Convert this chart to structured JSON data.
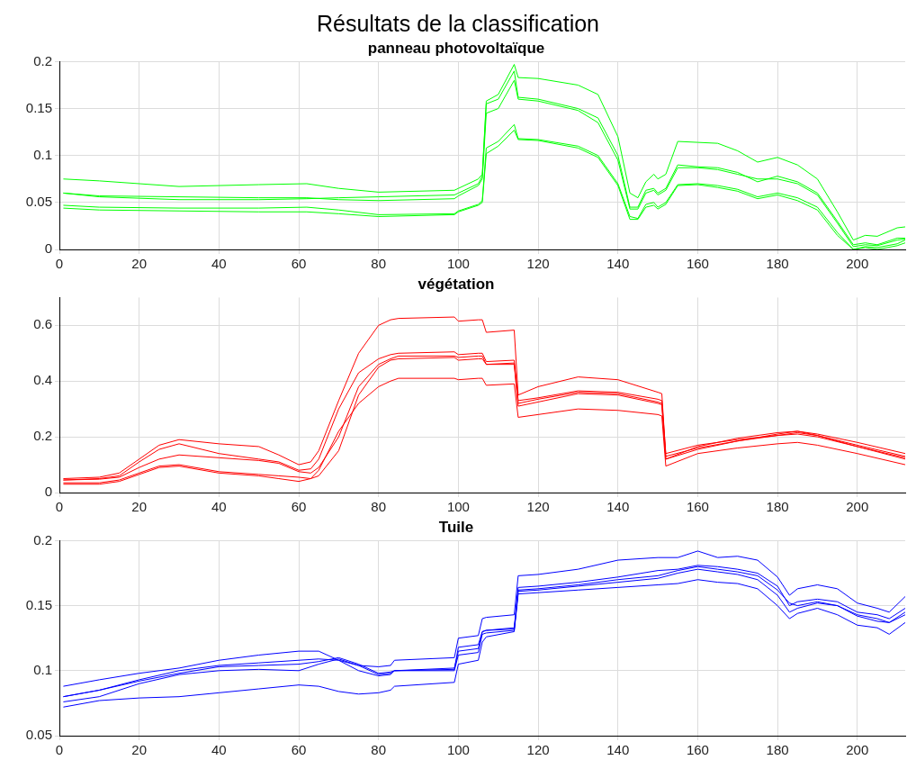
{
  "chart_data": [
    {
      "type": "line",
      "title": "Résultats de la classification",
      "subtitle": "panneau photovoltaïque",
      "x": [
        1,
        10,
        30,
        50,
        62,
        70,
        80,
        99,
        100,
        105,
        106,
        107,
        110,
        114,
        115,
        120,
        130,
        135,
        140,
        143,
        145,
        147,
        149,
        150,
        152,
        155,
        160,
        165,
        170,
        175,
        180,
        185,
        190,
        195,
        199,
        202,
        205,
        210,
        212
      ],
      "xlim": [
        0,
        212
      ],
      "xticks": [
        0,
        20,
        40,
        60,
        80,
        100,
        120,
        140,
        160,
        180,
        200
      ],
      "ylim": [
        0,
        0.2
      ],
      "yticks": [
        0,
        0.05,
        0.1,
        0.15,
        0.2
      ],
      "grid": true,
      "legend": false,
      "marker": "none",
      "line_style": "solid",
      "series": [
        {
          "color": "#00ff00",
          "values": [
            0.075,
            0.073,
            0.067,
            0.069,
            0.07,
            0.065,
            0.061,
            0.063,
            0.065,
            0.075,
            0.08,
            0.158,
            0.165,
            0.197,
            0.183,
            0.182,
            0.175,
            0.165,
            0.12,
            0.06,
            0.055,
            0.072,
            0.08,
            0.075,
            0.08,
            0.115,
            0.114,
            0.113,
            0.105,
            0.093,
            0.098,
            0.09,
            0.075,
            0.04,
            0.01,
            0.015,
            0.014,
            0.023,
            0.024
          ]
        },
        {
          "color": "#00ff00",
          "values": [
            0.06,
            0.056,
            0.053,
            0.053,
            0.054,
            0.055,
            0.056,
            0.058,
            0.06,
            0.07,
            0.078,
            0.155,
            0.16,
            0.19,
            0.162,
            0.16,
            0.15,
            0.14,
            0.1,
            0.045,
            0.045,
            0.063,
            0.065,
            0.06,
            0.065,
            0.09,
            0.088,
            0.087,
            0.082,
            0.072,
            0.078,
            0.072,
            0.06,
            0.03,
            0.005,
            0.007,
            0.005,
            0.012,
            0.012
          ]
        },
        {
          "color": "#00ff00",
          "values": [
            0.06,
            0.057,
            0.056,
            0.055,
            0.055,
            0.053,
            0.052,
            0.054,
            0.057,
            0.068,
            0.075,
            0.145,
            0.15,
            0.18,
            0.16,
            0.158,
            0.148,
            0.135,
            0.095,
            0.043,
            0.043,
            0.06,
            0.063,
            0.058,
            0.063,
            0.087,
            0.087,
            0.085,
            0.08,
            0.075,
            0.075,
            0.07,
            0.058,
            0.028,
            0.003,
            0.005,
            0.004,
            0.01,
            0.011
          ]
        },
        {
          "color": "#00ff00",
          "values": [
            0.047,
            0.045,
            0.044,
            0.044,
            0.045,
            0.042,
            0.037,
            0.038,
            0.041,
            0.048,
            0.052,
            0.108,
            0.115,
            0.133,
            0.118,
            0.117,
            0.11,
            0.1,
            0.07,
            0.035,
            0.033,
            0.048,
            0.05,
            0.045,
            0.05,
            0.069,
            0.07,
            0.068,
            0.064,
            0.056,
            0.06,
            0.055,
            0.045,
            0.018,
            0,
            0.003,
            0.002,
            0.006,
            0.01
          ]
        },
        {
          "color": "#00ff00",
          "values": [
            0.044,
            0.042,
            0.041,
            0.04,
            0.04,
            0.038,
            0.035,
            0.037,
            0.04,
            0.047,
            0.05,
            0.102,
            0.11,
            0.127,
            0.117,
            0.116,
            0.108,
            0.098,
            0.068,
            0.032,
            0.032,
            0.045,
            0.047,
            0.043,
            0.048,
            0.068,
            0.069,
            0.066,
            0.062,
            0.054,
            0.058,
            0.052,
            0.042,
            0.015,
            0,
            0.002,
            0,
            0.004,
            0.007
          ]
        }
      ]
    },
    {
      "type": "line",
      "title": "végétation",
      "x": [
        1,
        10,
        15,
        20,
        25,
        30,
        40,
        50,
        55,
        60,
        63,
        65,
        70,
        75,
        80,
        83,
        85,
        99,
        100,
        105,
        106,
        107,
        114,
        115,
        120,
        130,
        140,
        150,
        151,
        152,
        160,
        170,
        180,
        185,
        190,
        200,
        212
      ],
      "xlim": [
        0,
        212
      ],
      "xticks": [
        0,
        20,
        40,
        60,
        80,
        100,
        120,
        140,
        160,
        180,
        200
      ],
      "ylim": [
        0,
        0.7
      ],
      "yticks": [
        0,
        0.2,
        0.4,
        0.6
      ],
      "grid": true,
      "legend": false,
      "marker": "none",
      "line_style": "solid",
      "series": [
        {
          "color": "#ff0000",
          "values": [
            0.05,
            0.055,
            0.07,
            0.12,
            0.17,
            0.19,
            0.175,
            0.165,
            0.135,
            0.1,
            0.11,
            0.15,
            0.33,
            0.5,
            0.6,
            0.62,
            0.625,
            0.63,
            0.615,
            0.62,
            0.62,
            0.575,
            0.583,
            0.35,
            0.38,
            0.415,
            0.405,
            0.36,
            0.355,
            0.13,
            0.16,
            0.185,
            0.21,
            0.22,
            0.21,
            0.18,
            0.14
          ]
        },
        {
          "color": "#ff0000",
          "values": [
            0.045,
            0.05,
            0.06,
            0.11,
            0.155,
            0.175,
            0.14,
            0.12,
            0.11,
            0.08,
            0.085,
            0.12,
            0.3,
            0.43,
            0.48,
            0.495,
            0.5,
            0.505,
            0.495,
            0.5,
            0.5,
            0.47,
            0.475,
            0.33,
            0.34,
            0.365,
            0.36,
            0.335,
            0.33,
            0.14,
            0.17,
            0.19,
            0.205,
            0.215,
            0.205,
            0.17,
            0.13
          ]
        },
        {
          "color": "#ff0000",
          "values": [
            0.045,
            0.048,
            0.055,
            0.09,
            0.12,
            0.135,
            0.125,
            0.115,
            0.105,
            0.075,
            0.07,
            0.09,
            0.2,
            0.38,
            0.46,
            0.48,
            0.49,
            0.49,
            0.485,
            0.49,
            0.49,
            0.46,
            0.465,
            0.32,
            0.335,
            0.36,
            0.355,
            0.325,
            0.32,
            0.12,
            0.165,
            0.195,
            0.215,
            0.22,
            0.205,
            0.165,
            0.125
          ]
        },
        {
          "color": "#ff0000",
          "values": [
            0.035,
            0.035,
            0.045,
            0.07,
            0.095,
            0.1,
            0.075,
            0.065,
            0.06,
            0.055,
            0.05,
            0.06,
            0.15,
            0.35,
            0.45,
            0.475,
            0.48,
            0.485,
            0.475,
            0.48,
            0.48,
            0.46,
            0.46,
            0.31,
            0.325,
            0.355,
            0.35,
            0.32,
            0.315,
            0.12,
            0.155,
            0.185,
            0.205,
            0.21,
            0.2,
            0.165,
            0.12
          ]
        },
        {
          "color": "#ff0000",
          "values": [
            0.03,
            0.03,
            0.04,
            0.065,
            0.09,
            0.095,
            0.07,
            0.06,
            0.05,
            0.04,
            0.05,
            0.08,
            0.22,
            0.32,
            0.38,
            0.4,
            0.41,
            0.41,
            0.405,
            0.41,
            0.41,
            0.385,
            0.39,
            0.27,
            0.28,
            0.3,
            0.295,
            0.28,
            0.275,
            0.095,
            0.14,
            0.16,
            0.175,
            0.18,
            0.17,
            0.14,
            0.1
          ]
        }
      ]
    },
    {
      "type": "line",
      "title": "Tuile",
      "x": [
        1,
        10,
        20,
        30,
        40,
        50,
        60,
        65,
        70,
        75,
        80,
        83,
        84,
        99,
        100,
        105,
        106,
        107,
        114,
        115,
        120,
        130,
        140,
        150,
        155,
        160,
        165,
        170,
        175,
        180,
        183,
        185,
        190,
        195,
        200,
        205,
        208,
        212
      ],
      "xlim": [
        0,
        212
      ],
      "xticks": [
        0,
        20,
        40,
        60,
        80,
        100,
        120,
        140,
        160,
        180,
        200
      ],
      "ylim": [
        0.05,
        0.2
      ],
      "yticks": [
        0.05,
        0.1,
        0.15,
        0.2
      ],
      "grid": true,
      "legend": false,
      "marker": "none",
      "line_style": "solid",
      "series": [
        {
          "color": "#0000ff",
          "values": [
            0.088,
            0.093,
            0.098,
            0.102,
            0.108,
            0.112,
            0.115,
            0.115,
            0.108,
            0.104,
            0.103,
            0.104,
            0.108,
            0.11,
            0.125,
            0.127,
            0.14,
            0.141,
            0.143,
            0.173,
            0.174,
            0.178,
            0.185,
            0.187,
            0.187,
            0.192,
            0.187,
            0.188,
            0.185,
            0.172,
            0.158,
            0.163,
            0.166,
            0.163,
            0.152,
            0.148,
            0.145,
            0.157
          ]
        },
        {
          "color": "#0000ff",
          "values": [
            0.08,
            0.085,
            0.093,
            0.1,
            0.104,
            0.106,
            0.108,
            0.109,
            0.108,
            0.1,
            0.096,
            0.097,
            0.1,
            0.101,
            0.118,
            0.12,
            0.13,
            0.131,
            0.133,
            0.164,
            0.165,
            0.168,
            0.172,
            0.177,
            0.178,
            0.181,
            0.18,
            0.178,
            0.175,
            0.165,
            0.15,
            0.153,
            0.155,
            0.153,
            0.145,
            0.143,
            0.14,
            0.148
          ]
        },
        {
          "color": "#0000ff",
          "values": [
            0.08,
            0.085,
            0.092,
            0.098,
            0.103,
            0.104,
            0.105,
            0.107,
            0.11,
            0.105,
            0.098,
            0.099,
            0.1,
            0.102,
            0.115,
            0.117,
            0.13,
            0.131,
            0.132,
            0.162,
            0.163,
            0.166,
            0.17,
            0.173,
            0.177,
            0.18,
            0.178,
            0.176,
            0.173,
            0.162,
            0.152,
            0.15,
            0.153,
            0.15,
            0.143,
            0.14,
            0.137,
            0.145
          ]
        },
        {
          "color": "#0000ff",
          "values": [
            0.076,
            0.08,
            0.09,
            0.097,
            0.1,
            0.101,
            0.1,
            0.105,
            0.109,
            0.104,
            0.097,
            0.098,
            0.1,
            0.1,
            0.112,
            0.114,
            0.128,
            0.129,
            0.131,
            0.161,
            0.162,
            0.165,
            0.168,
            0.171,
            0.175,
            0.178,
            0.176,
            0.174,
            0.17,
            0.158,
            0.145,
            0.148,
            0.152,
            0.15,
            0.142,
            0.138,
            0.137,
            0.143
          ]
        },
        {
          "color": "#0000ff",
          "values": [
            0.072,
            0.077,
            0.079,
            0.08,
            0.083,
            0.086,
            0.089,
            0.088,
            0.084,
            0.082,
            0.083,
            0.085,
            0.088,
            0.091,
            0.105,
            0.108,
            0.122,
            0.126,
            0.13,
            0.159,
            0.16,
            0.162,
            0.164,
            0.166,
            0.167,
            0.17,
            0.168,
            0.167,
            0.163,
            0.15,
            0.14,
            0.144,
            0.148,
            0.143,
            0.135,
            0.133,
            0.128,
            0.137
          ]
        }
      ]
    }
  ]
}
